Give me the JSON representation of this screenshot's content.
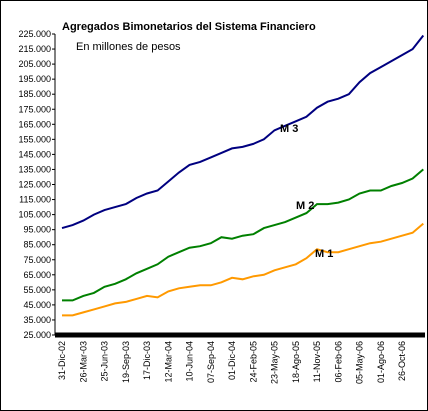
{
  "chart_data": {
    "type": "line",
    "title": "Agregados Bimonetarios del Sistema Financiero",
    "subtitle": "En millones de pesos",
    "categories": [
      "31-Dic-02",
      null,
      "26-Mar-03",
      null,
      "25-Jun-03",
      null,
      "19-Sep-03",
      null,
      "17-Dic-03",
      null,
      "12-Mar-04",
      null,
      "10-Jun-04",
      null,
      "07-Sep-04",
      null,
      "01-Dic-04",
      null,
      "24-Feb-05",
      null,
      "23-May-05",
      null,
      "18-Ago-05",
      null,
      "11-Nov-05",
      null,
      "06-Feb-06",
      null,
      "05-May-06",
      null,
      "01-Ago-06",
      null,
      "26-Oct-06",
      null,
      null
    ],
    "series": [
      {
        "name": "M 3",
        "color": "#000080",
        "values": [
          96000,
          98000,
          101000,
          105000,
          108000,
          110000,
          112000,
          116000,
          119000,
          121000,
          127000,
          133000,
          138000,
          140000,
          143000,
          146000,
          149000,
          150000,
          152000,
          155000,
          161000,
          164000,
          167000,
          170000,
          176000,
          180000,
          182000,
          185000,
          193000,
          199000,
          203000,
          207000,
          211000,
          215000,
          224000
        ]
      },
      {
        "name": "M 2",
        "color": "#008000",
        "values": [
          48000,
          48000,
          51000,
          53000,
          57000,
          59000,
          62000,
          66000,
          69000,
          72000,
          77000,
          80000,
          83000,
          84000,
          86000,
          90000,
          89000,
          91000,
          92000,
          96000,
          98000,
          100000,
          103000,
          106000,
          112000,
          112000,
          113000,
          115000,
          119000,
          121000,
          121000,
          124000,
          126000,
          129000,
          135000
        ]
      },
      {
        "name": "M 1",
        "color": "#ff9900",
        "values": [
          38000,
          38000,
          40000,
          42000,
          44000,
          46000,
          47000,
          49000,
          51000,
          50000,
          54000,
          56000,
          57000,
          58000,
          58000,
          60000,
          63000,
          62000,
          64000,
          65000,
          68000,
          70000,
          72000,
          76000,
          82000,
          80000,
          80000,
          82000,
          84000,
          86000,
          87000,
          89000,
          91000,
          93000,
          99000
        ]
      }
    ],
    "ylim": [
      25000,
      225000
    ],
    "yticks": [
      {
        "value": 25000,
        "label": "25.000"
      },
      {
        "value": 35000,
        "label": "35.000"
      },
      {
        "value": 45000,
        "label": "45.000"
      },
      {
        "value": 55000,
        "label": "55.000"
      },
      {
        "value": 65000,
        "label": "65.000"
      },
      {
        "value": 75000,
        "label": "75.000"
      },
      {
        "value": 85000,
        "label": "85.000"
      },
      {
        "value": 95000,
        "label": "95.000"
      },
      {
        "value": 105000,
        "label": "105.000"
      },
      {
        "value": 115000,
        "label": "115.000"
      },
      {
        "value": 125000,
        "label": "125.000"
      },
      {
        "value": 135000,
        "label": "135.000"
      },
      {
        "value": 145000,
        "label": "145.000"
      },
      {
        "value": 155000,
        "label": "155.000"
      },
      {
        "value": 165000,
        "label": "165.000"
      },
      {
        "value": 175000,
        "label": "175.000"
      },
      {
        "value": 185000,
        "label": "185.000"
      },
      {
        "value": 195000,
        "label": "195.000"
      },
      {
        "value": 205000,
        "label": "205.000"
      },
      {
        "value": 215000,
        "label": "215.000"
      },
      {
        "value": 225000,
        "label": "225.000"
      }
    ],
    "grid": false
  }
}
